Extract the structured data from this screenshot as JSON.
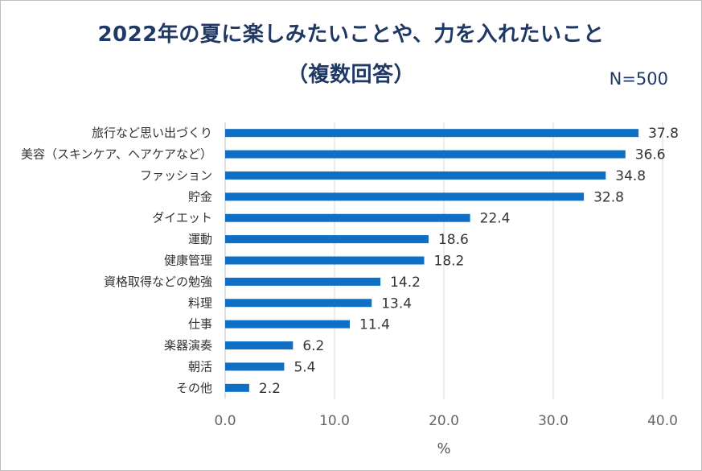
{
  "chart_data": {
    "type": "bar",
    "orientation": "horizontal",
    "title": "2022年の夏に楽しみたいことや、力を入れたいこと",
    "subtitle": "（複数回答）",
    "note": "N=500",
    "xlabel": "%",
    "ylabel": "",
    "xlim": [
      0,
      40
    ],
    "xticks": [
      "0.0",
      "10.0",
      "20.0",
      "30.0",
      "40.0"
    ],
    "grid": "vertical",
    "bar_color": "#0f6fc6",
    "categories": [
      "旅行など思い出づくり",
      "美容（スキンケア、ヘアケアなど）",
      "ファッション",
      "貯金",
      "ダイエット",
      "運動",
      "健康管理",
      "資格取得などの勉強",
      "料理",
      "仕事",
      "楽器演奏",
      "朝活",
      "その他"
    ],
    "values": [
      37.8,
      36.6,
      34.8,
      32.8,
      22.4,
      18.6,
      18.2,
      14.2,
      13.4,
      11.4,
      6.2,
      5.4,
      2.2
    ],
    "value_labels": [
      "37.8",
      "36.6",
      "34.8",
      "32.8",
      "22.4",
      "18.6",
      "18.2",
      "14.2",
      "13.4",
      "11.4",
      "6.2",
      "5.4",
      "2.2"
    ]
  }
}
